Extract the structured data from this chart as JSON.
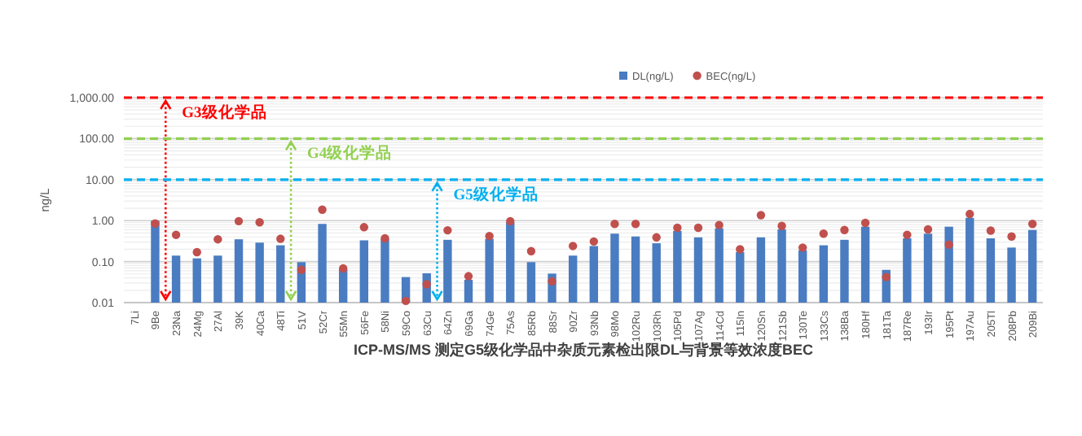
{
  "chart_data": {
    "type": "bar",
    "title": "ICP-MS/MS 测定G5级化学品中杂质元素检出限DL与背景等效浓度BEC",
    "ylabel": "ng/L",
    "log": "y",
    "grid": "y",
    "legend": "top",
    "categories": [
      "7Li",
      "9Be",
      "23Na",
      "24Mg",
      "27Al",
      "39K",
      "40Ca",
      "48Ti",
      "51V",
      "52Cr",
      "55Mn",
      "56Fe",
      "58Ni",
      "59Co",
      "63Cu",
      "64Zn",
      "69Ga",
      "74Ge",
      "75As",
      "85Rb",
      "88Sr",
      "90Zr",
      "93Nb",
      "98Mo",
      "102Ru",
      "103Rh",
      "105Pd",
      "107Ag",
      "114Cd",
      "115In",
      "120Sn",
      "121Sb",
      "130Te",
      "133Cs",
      "138Ba",
      "180Hf",
      "181Ta",
      "187Re",
      "193Ir",
      "195Pt",
      "197Au",
      "205Tl",
      "208Pb",
      "209Bi"
    ],
    "ylim": [
      0.01,
      1000
    ],
    "yticks": [
      {
        "value": 0.01,
        "label": "0.01"
      },
      {
        "value": 0.1,
        "label": "0.10"
      },
      {
        "value": 1,
        "label": "1.00"
      },
      {
        "value": 10,
        "label": "10.00"
      },
      {
        "value": 100,
        "label": "100.00"
      },
      {
        "value": 1000,
        "label": "1,000.00"
      }
    ],
    "series": [
      {
        "name": "DL(ng/L)",
        "type": "bar",
        "color": "#4a7cc1",
        "values": [
          null,
          1.0,
          0.14,
          0.12,
          0.14,
          0.35,
          0.29,
          0.25,
          0.097,
          0.83,
          0.065,
          0.33,
          0.36,
          0.042,
          0.052,
          0.34,
          0.036,
          0.36,
          0.91,
          0.097,
          0.051,
          0.14,
          0.24,
          0.48,
          0.41,
          0.28,
          0.56,
          0.39,
          0.65,
          0.17,
          0.39,
          0.61,
          0.19,
          0.25,
          0.34,
          0.71,
          0.063,
          0.37,
          0.48,
          0.71,
          1.17,
          0.37,
          0.22,
          0.59
        ]
      },
      {
        "name": "BEC(ng/L)",
        "type": "scatter",
        "marker": "circle",
        "color": "#c0504d",
        "values": [
          null,
          0.85,
          0.45,
          0.17,
          0.35,
          0.97,
          0.91,
          0.36,
          0.063,
          1.85,
          0.068,
          0.69,
          0.37,
          0.011,
          0.028,
          0.58,
          0.044,
          0.42,
          0.97,
          0.18,
          0.033,
          0.24,
          0.31,
          0.83,
          0.83,
          0.39,
          0.67,
          0.67,
          0.78,
          0.2,
          1.36,
          0.74,
          0.22,
          0.48,
          0.59,
          0.88,
          0.042,
          0.45,
          0.61,
          0.26,
          1.45,
          0.57,
          0.41,
          0.83
        ]
      }
    ],
    "ref_lines": [
      {
        "axis": "y",
        "value": 1000,
        "label": "G3级化学品",
        "color": "#ff0000",
        "line_style": "dashed"
      },
      {
        "axis": "y",
        "value": 100,
        "label": "G4级化学品",
        "color": "#92d050",
        "line_style": "dashed"
      },
      {
        "axis": "y",
        "value": 10,
        "label": "G5级化学品",
        "color": "#00b0f0",
        "line_style": "dashed"
      }
    ]
  }
}
